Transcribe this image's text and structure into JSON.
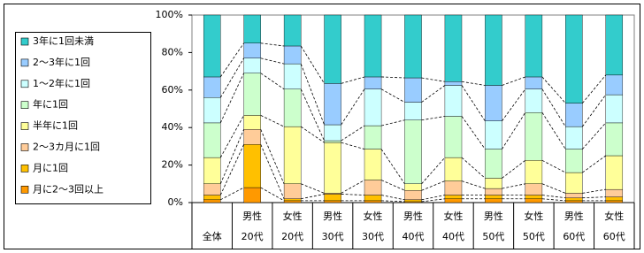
{
  "chart_data": {
    "type": "stacked_bar_100",
    "categories": [
      [
        null,
        "全体"
      ],
      [
        "男性",
        "20代"
      ],
      [
        "女性",
        "20代"
      ],
      [
        "男性",
        "30代"
      ],
      [
        "女性",
        "30代"
      ],
      [
        "男性",
        "40代"
      ],
      [
        "女性",
        "40代"
      ],
      [
        "男性",
        "50代"
      ],
      [
        "女性",
        "50代"
      ],
      [
        "男性",
        "60代"
      ],
      [
        "女性",
        "60代"
      ]
    ],
    "series": [
      {
        "name": "月に2～3回以上",
        "color": "#ff9900",
        "values": [
          1.5,
          8,
          1,
          1,
          1,
          0.5,
          2,
          2,
          2,
          1,
          1
        ]
      },
      {
        "name": "月に1回",
        "color": "#ffc000",
        "values": [
          2.5,
          23,
          1,
          3.5,
          3,
          1,
          2,
          2,
          2,
          1.5,
          2
        ]
      },
      {
        "name": "2～3カ月に1回",
        "color": "#ffcc99",
        "values": [
          6,
          8,
          8,
          0.5,
          8,
          5,
          7.5,
          3.5,
          6,
          2.5,
          4
        ]
      },
      {
        "name": "半年に1回",
        "color": "#ffff99",
        "values": [
          14,
          7.5,
          30.5,
          27,
          16.5,
          3.5,
          12.5,
          5.5,
          12.5,
          11,
          18
        ]
      },
      {
        "name": "年に1回",
        "color": "#ccffcc",
        "values": [
          18.5,
          22.5,
          20,
          1,
          12.5,
          34,
          22,
          15.5,
          25.5,
          12.5,
          17.5
        ]
      },
      {
        "name": "1～2年に1回",
        "color": "#ccffff",
        "values": [
          13.5,
          8,
          13.5,
          8.5,
          19.5,
          9.5,
          16.5,
          15,
          12.5,
          12,
          15
        ]
      },
      {
        "name": "2～3年に1回",
        "color": "#99ccff",
        "values": [
          11,
          8,
          9.5,
          22,
          6.5,
          13,
          2,
          19,
          6.5,
          12.5,
          10.5
        ]
      },
      {
        "name": "3年に1回未満",
        "color": "#33cccc",
        "values": [
          33,
          15,
          16.5,
          36.5,
          33,
          33.5,
          35.5,
          37.5,
          33,
          47,
          32
        ]
      }
    ],
    "ylim": [
      0,
      100
    ],
    "yticks": [
      {
        "value": 0,
        "label": "0%"
      },
      {
        "value": 20,
        "label": "20%"
      },
      {
        "value": 40,
        "label": "40%"
      },
      {
        "value": 60,
        "label": "60%"
      },
      {
        "value": 80,
        "label": "80%"
      },
      {
        "value": 100,
        "label": "100%"
      }
    ],
    "grid": false,
    "series_lines": true,
    "legend": "left"
  }
}
